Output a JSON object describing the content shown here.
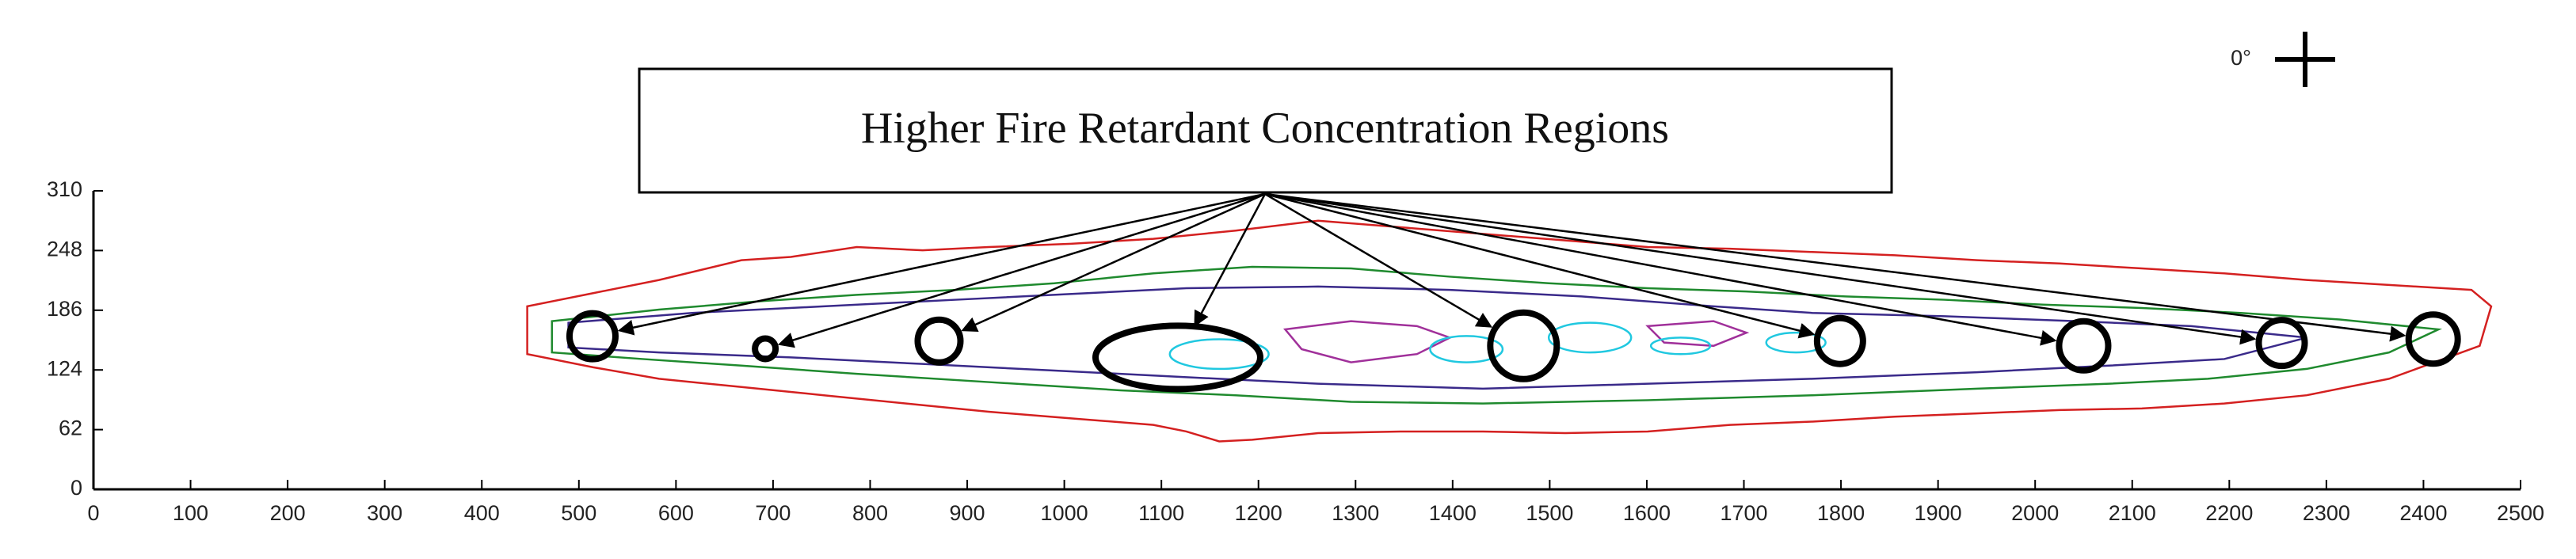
{
  "chart_data": {
    "type": "scatter",
    "annotation": "Higher Fire Retardant Concentration Regions",
    "orientation_label": "0°",
    "x": [
      514,
      692,
      871,
      1117,
      1473,
      1799,
      2050,
      2254,
      2410
    ],
    "values": [
      159,
      146,
      154,
      137,
      149,
      154,
      149,
      152,
      156
    ],
    "color": "#000000",
    "xlim": [
      0,
      2500
    ],
    "ylim": [
      0,
      310
    ],
    "xticks": [
      0,
      100,
      200,
      300,
      400,
      500,
      600,
      700,
      800,
      900,
      1000,
      1100,
      1200,
      1300,
      1400,
      1500,
      1600,
      1700,
      1800,
      1900,
      2000,
      2100,
      2200,
      2300,
      2400,
      2500
    ],
    "yticks": [
      0,
      62,
      124,
      186,
      248,
      310
    ]
  }
}
